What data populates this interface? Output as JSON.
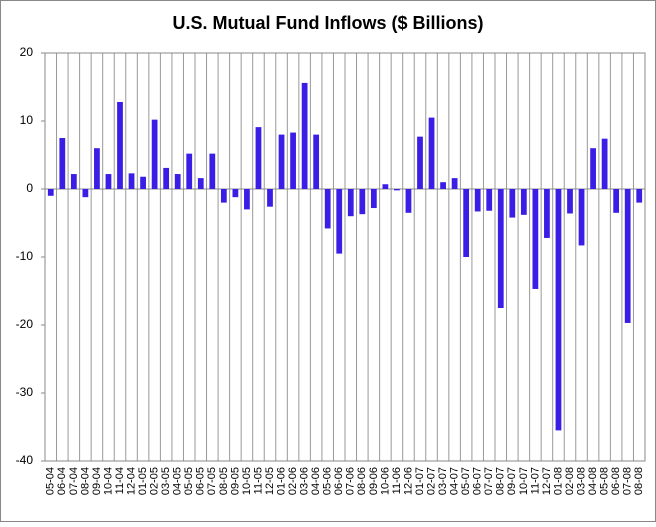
{
  "chart_data": {
    "type": "bar",
    "title": "U.S. Mutual Fund Inflows ($ Billions)",
    "categories": [
      "05-04",
      "06-04",
      "07-04",
      "08-04",
      "09-04",
      "10-04",
      "11-04",
      "12-04",
      "01-05",
      "02-05",
      "03-05",
      "04-05",
      "05-05",
      "06-05",
      "07-05",
      "08-05",
      "09-05",
      "10-05",
      "11-05",
      "12-05",
      "01-06",
      "02-06",
      "03-06",
      "04-06",
      "05-06",
      "06-06",
      "07-06",
      "08-06",
      "09-06",
      "10-06",
      "11-06",
      "12-06",
      "01-07",
      "02-07",
      "03-07",
      "04-07",
      "05-07",
      "06-07",
      "07-07",
      "08-07",
      "09-07",
      "10-07",
      "11-07",
      "12-07",
      "01-08",
      "02-08",
      "03-08",
      "04-08",
      "05-08",
      "06-08",
      "07-08",
      "08-08"
    ],
    "values": [
      -1,
      7.5,
      2.2,
      -1.2,
      6,
      2.2,
      12.8,
      2.3,
      1.8,
      10.2,
      3.1,
      2.2,
      5.2,
      1.6,
      5.2,
      -2,
      -1.2,
      -3,
      9.1,
      -2.6,
      8,
      8.3,
      15.6,
      8,
      -5.8,
      -9.5,
      -4,
      -3.7,
      -2.8,
      0.7,
      -0.2,
      -3.5,
      7.7,
      10.5,
      1,
      1.6,
      -10,
      -3.3,
      -3.2,
      -17.5,
      -4.2,
      -3.8,
      -14.7,
      -7.2,
      -35.5,
      -3.6,
      -8.3,
      6,
      7.4,
      -3.5,
      -19.7,
      -2
    ],
    "color": "#3a1ee6",
    "ylim": [
      -40,
      20
    ],
    "yticks": [
      -40,
      -30,
      -20,
      -10,
      0,
      10,
      20
    ],
    "grid": true
  }
}
